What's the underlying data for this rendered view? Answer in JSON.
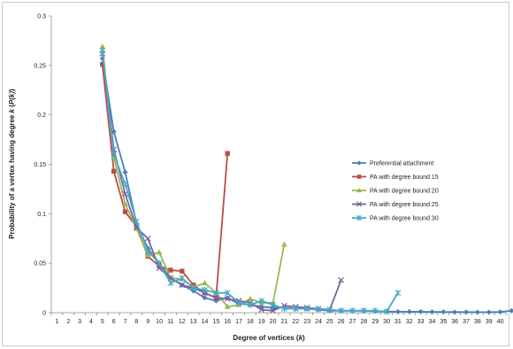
{
  "chart_data": {
    "type": "line",
    "xlabel_prefix": "Degree of vertices (",
    "xlabel_var": "k",
    "xlabel_suffix": ")",
    "ylabel_prefix": "Probability of a vertex having degree ",
    "ylabel_var": "k",
    "ylabel_mid": " (",
    "ylabel_var2": "P(k)",
    "ylabel_suffix": ")",
    "categories": [
      "1",
      "2",
      "3",
      "4",
      "5",
      "6",
      "7",
      "8",
      "9",
      "10",
      "11",
      "12",
      "13",
      "14",
      "15",
      "16",
      "17",
      "18",
      "19",
      "20",
      "21",
      "22",
      "23",
      "24",
      "25",
      "26",
      "27",
      "28",
      "29",
      "30",
      "31",
      "32",
      "33",
      "34",
      "35",
      "36",
      "37",
      "38",
      "39",
      "40"
    ],
    "ylim": [
      0,
      0.3
    ],
    "yticks": [
      0,
      0.05,
      0.1,
      0.15,
      0.2,
      0.25,
      0.3
    ],
    "ytick_labels": [
      "0",
      "0.05",
      "0.1",
      "0.15",
      "0.2",
      "0.25",
      "0.3"
    ],
    "legend_position": "right",
    "series": [
      {
        "name": "Preferential attachment",
        "color": "#4a7ebb",
        "marker": "diamond",
        "x": [
          5,
          6,
          7,
          8,
          9,
          10,
          11,
          12,
          13,
          14,
          15,
          16,
          17,
          18,
          19,
          20,
          21,
          22,
          23,
          24,
          25,
          26,
          27,
          28,
          29,
          30,
          31,
          32,
          33,
          34,
          35,
          36,
          37,
          38,
          39,
          40,
          41
        ],
        "y": [
          0.257,
          0.183,
          0.142,
          0.09,
          0.065,
          0.05,
          0.035,
          0.028,
          0.022,
          0.015,
          0.012,
          0.015,
          0.009,
          0.008,
          0.006,
          0.005,
          0.005,
          0.004,
          0.004,
          0.003,
          0.002,
          0.002,
          0.002,
          0.002,
          0.0015,
          0.0012,
          0.001,
          0.001,
          0.001,
          0.0008,
          0.0008,
          0.0006,
          0.0006,
          0.0005,
          0.0005,
          0.0008,
          0.002
        ]
      },
      {
        "name": "PA with degree bound 15",
        "color": "#be4b48",
        "marker": "square",
        "x": [
          5,
          6,
          7,
          8,
          9,
          10,
          11,
          12,
          13,
          14,
          15,
          16
        ],
        "y": [
          0.251,
          0.143,
          0.102,
          0.087,
          0.057,
          0.047,
          0.043,
          0.042,
          0.028,
          0.02,
          0.015,
          0.161
        ]
      },
      {
        "name": "PA with degree bound 20",
        "color": "#98b954",
        "marker": "triangle",
        "x": [
          5,
          6,
          7,
          8,
          9,
          10,
          11,
          12,
          13,
          14,
          15,
          16,
          17,
          18,
          19,
          20,
          21
        ],
        "y": [
          0.269,
          0.157,
          0.11,
          0.085,
          0.058,
          0.061,
          0.035,
          0.034,
          0.026,
          0.03,
          0.02,
          0.006,
          0.008,
          0.014,
          0.01,
          0.01,
          0.069
        ]
      },
      {
        "name": "PA with degree bound 25",
        "color": "#7d60a0",
        "marker": "x",
        "x": [
          5,
          6,
          7,
          8,
          9,
          10,
          11,
          12,
          13,
          14,
          15,
          16,
          17,
          18,
          19,
          20,
          21,
          22,
          23,
          24,
          25,
          26
        ],
        "y": [
          0.262,
          0.165,
          0.12,
          0.086,
          0.075,
          0.045,
          0.035,
          0.028,
          0.025,
          0.02,
          0.015,
          0.014,
          0.012,
          0.01,
          0.003,
          0.002,
          0.007,
          0.006,
          0.005,
          0.004,
          0.003,
          0.033
        ]
      },
      {
        "name": "PA with degree bound 30",
        "color": "#46aac5",
        "marker": "star",
        "x": [
          5,
          6,
          7,
          8,
          9,
          10,
          11,
          12,
          13,
          14,
          15,
          16,
          17,
          18,
          19,
          20,
          21,
          22,
          23,
          24,
          25,
          26,
          27,
          28,
          29,
          30,
          31
        ],
        "y": [
          0.265,
          0.16,
          0.13,
          0.092,
          0.062,
          0.05,
          0.03,
          0.035,
          0.025,
          0.023,
          0.02,
          0.02,
          0.01,
          0.008,
          0.012,
          0.008,
          0.004,
          0.004,
          0.004,
          0.004,
          0.003,
          0.002,
          0.002,
          0.002,
          0.002,
          0.001,
          0.02
        ]
      }
    ]
  }
}
